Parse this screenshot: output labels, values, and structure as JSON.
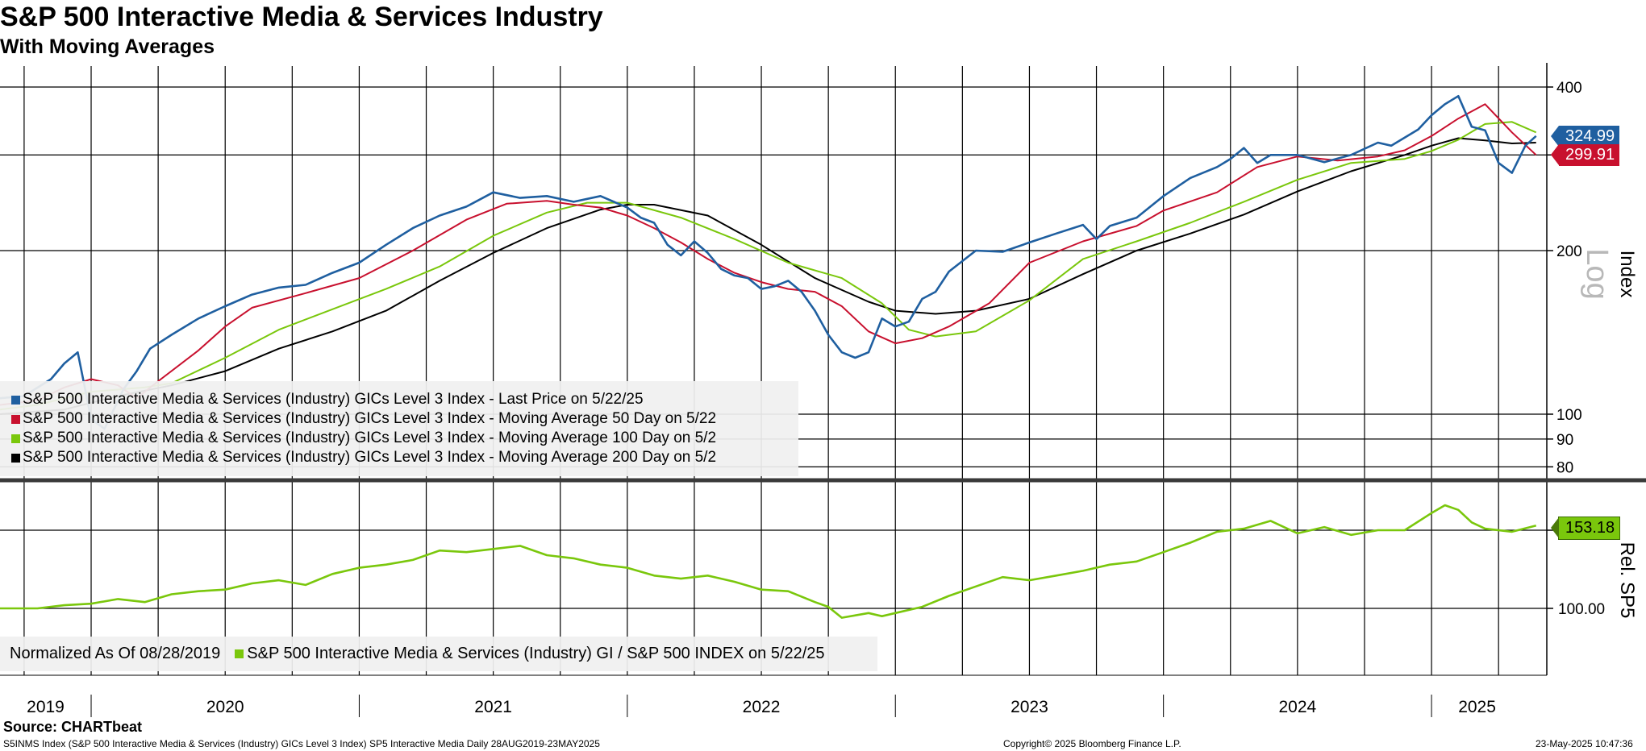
{
  "title": "S&P 500 Interactive Media & Services Industry",
  "subtitle": "With Moving Averages",
  "source": "Source: CHARTbeat",
  "footer": {
    "left": "S5INMS Index (S&P 500 Interactive Media & Services (Industry) GICs Level 3 Index) SP5 Interactive Media  Daily 28AUG2019-23MAY2025",
    "center": "Copyright© 2025 Bloomberg Finance L.P.",
    "right": "23-May-2025 10:47:36"
  },
  "colors": {
    "price": "#1f5fa0",
    "ma50": "#c8102e",
    "ma100": "#7ac70c",
    "ma200": "#000000",
    "rel": "#7ac70c"
  },
  "chart_data": [
    {
      "type": "line",
      "scale": "log",
      "ylabel": "Index",
      "scale_label": "Log",
      "ylim": [
        75,
        420
      ],
      "yticks": [
        80,
        90,
        100,
        200,
        300,
        400
      ],
      "ytick_labels": [
        "80",
        "90",
        "100",
        "200",
        "",
        "400"
      ],
      "xlim": [
        2019.66,
        2025.43
      ],
      "x_labels": [
        "2019",
        "2020",
        "2021",
        "2022",
        "2023",
        "2024",
        "2025"
      ],
      "x_label_positions": [
        2019.83,
        2020.5,
        2021.5,
        2022.5,
        2023.5,
        2024.5,
        2025.17
      ],
      "legend": [
        "S&P 500 Interactive Media & Services (Industry) GICs Level 3 Index - Last Price on 5/22/25",
        "S&P 500 Interactive Media & Services (Industry) GICs Level 3 Index - Moving Average 50 Day on 5/22",
        "S&P 500 Interactive Media & Services (Industry) GICs Level 3 Index - Moving Average 100 Day on 5/2",
        "S&P 500 Interactive Media & Services (Industry) GICs Level 3 Index - Moving Average 200 Day on 5/2"
      ],
      "last_labels": {
        "price": "324.99",
        "ma50": "299.91"
      },
      "series": [
        {
          "name": "Last Price",
          "color": "#1f5fa0",
          "x": [
            2019.66,
            2019.75,
            2019.85,
            2019.9,
            2019.95,
            2020.0,
            2020.05,
            2020.12,
            2020.17,
            2020.22,
            2020.3,
            2020.4,
            2020.5,
            2020.6,
            2020.7,
            2020.8,
            2020.9,
            2021.0,
            2021.1,
            2021.2,
            2021.3,
            2021.4,
            2021.5,
            2021.6,
            2021.7,
            2021.8,
            2021.9,
            2022.0,
            2022.05,
            2022.1,
            2022.15,
            2022.2,
            2022.25,
            2022.3,
            2022.35,
            2022.4,
            2022.45,
            2022.5,
            2022.55,
            2022.6,
            2022.65,
            2022.7,
            2022.75,
            2022.8,
            2022.85,
            2022.9,
            2022.95,
            2023.0,
            2023.05,
            2023.1,
            2023.15,
            2023.2,
            2023.3,
            2023.4,
            2023.5,
            2023.6,
            2023.7,
            2023.75,
            2023.8,
            2023.9,
            2024.0,
            2024.1,
            2024.2,
            2024.25,
            2024.3,
            2024.35,
            2024.4,
            2024.5,
            2024.6,
            2024.7,
            2024.8,
            2024.85,
            2024.95,
            2025.0,
            2025.05,
            2025.1,
            2025.15,
            2025.2,
            2025.25,
            2025.3,
            2025.35,
            2025.39
          ],
          "y": [
            107,
            108,
            116,
            124,
            130,
            98,
            94,
            111,
            120,
            132,
            140,
            150,
            158,
            166,
            171,
            173,
            182,
            190,
            205,
            220,
            232,
            241,
            256,
            250,
            252,
            246,
            252,
            240,
            230,
            225,
            205,
            196,
            208,
            198,
            185,
            180,
            178,
            170,
            172,
            176,
            168,
            155,
            140,
            130,
            127,
            130,
            150,
            145,
            148,
            163,
            168,
            183,
            200,
            199,
            207,
            215,
            223,
            210,
            222,
            230,
            252,
            272,
            285,
            295,
            309,
            290,
            300,
            300,
            291,
            300,
            316,
            312,
            334,
            355,
            372,
            385,
            338,
            333,
            290,
            278,
            312,
            325
          ]
        },
        {
          "name": "Moving Average 50 Day",
          "color": "#c8102e",
          "x": [
            2019.66,
            2019.8,
            2019.9,
            2020.0,
            2020.1,
            2020.17,
            2020.25,
            2020.4,
            2020.5,
            2020.6,
            2020.8,
            2021.0,
            2021.2,
            2021.4,
            2021.55,
            2021.7,
            2021.8,
            2021.9,
            2022.0,
            2022.1,
            2022.2,
            2022.3,
            2022.4,
            2022.5,
            2022.6,
            2022.7,
            2022.8,
            2022.9,
            2023.0,
            2023.1,
            2023.2,
            2023.35,
            2023.5,
            2023.7,
            2023.9,
            2024.0,
            2024.2,
            2024.35,
            2024.5,
            2024.65,
            2024.8,
            2024.9,
            2025.0,
            2025.1,
            2025.2,
            2025.3,
            2025.39
          ],
          "y": [
            104,
            106,
            112,
            116,
            113,
            107,
            115,
            131,
            145,
            157,
            167,
            178,
            200,
            228,
            244,
            247,
            243,
            240,
            232,
            220,
            207,
            193,
            182,
            175,
            170,
            168,
            158,
            142,
            135,
            138,
            145,
            160,
            190,
            208,
            222,
            237,
            256,
            285,
            298,
            293,
            298,
            306,
            325,
            350,
            372,
            330,
            300
          ]
        },
        {
          "name": "Moving Average 100 Day",
          "color": "#7ac70c",
          "x": [
            2019.66,
            2019.8,
            2020.0,
            2020.2,
            2020.3,
            2020.5,
            2020.7,
            2020.9,
            2021.1,
            2021.3,
            2021.5,
            2021.7,
            2021.85,
            2022.0,
            2022.2,
            2022.4,
            2022.6,
            2022.8,
            2022.95,
            2023.05,
            2023.15,
            2023.3,
            2023.5,
            2023.7,
            2023.9,
            2024.1,
            2024.3,
            2024.5,
            2024.7,
            2024.9,
            2025.0,
            2025.1,
            2025.2,
            2025.3,
            2025.39
          ],
          "y": [
            102,
            104,
            110,
            112,
            114,
            127,
            143,
            156,
            170,
            187,
            213,
            235,
            245,
            245,
            230,
            210,
            190,
            178,
            160,
            143,
            139,
            142,
            162,
            193,
            208,
            225,
            246,
            270,
            290,
            295,
            305,
            320,
            342,
            345,
            330
          ]
        },
        {
          "name": "Moving Average 200 Day",
          "color": "#000000",
          "x": [
            2019.66,
            2019.9,
            2020.1,
            2020.3,
            2020.5,
            2020.7,
            2020.9,
            2021.1,
            2021.3,
            2021.5,
            2021.7,
            2021.9,
            2022.0,
            2022.1,
            2022.3,
            2022.5,
            2022.7,
            2022.9,
            2023.0,
            2023.15,
            2023.3,
            2023.5,
            2023.7,
            2023.9,
            2024.1,
            2024.3,
            2024.5,
            2024.7,
            2024.9,
            2025.0,
            2025.1,
            2025.2,
            2025.3,
            2025.39
          ],
          "y": [
            100,
            102,
            108,
            113,
            120,
            132,
            142,
            155,
            176,
            198,
            220,
            238,
            243,
            243,
            232,
            205,
            178,
            161,
            155,
            153,
            155,
            163,
            181,
            200,
            215,
            233,
            257,
            280,
            300,
            312,
            322,
            319,
            315,
            316
          ]
        }
      ]
    },
    {
      "type": "line",
      "ylabel": "Rel. SP5",
      "ytick_labels": [
        "100.00"
      ],
      "ylim": [
        70,
        175
      ],
      "yticks": [
        100
      ],
      "legend": [
        "Normalized As Of 08/28/2019",
        "S&P 500 Interactive Media & Services (Industry) GI / S&P 500 INDEX on 5/22/25"
      ],
      "last_label": "153.18",
      "series": [
        {
          "name": "S&P 500 Interactive Media & Services (Industry) GI / S&P 500 INDEX",
          "color": "#7ac70c",
          "x": [
            2019.66,
            2019.8,
            2019.9,
            2020.0,
            2020.1,
            2020.2,
            2020.3,
            2020.4,
            2020.5,
            2020.6,
            2020.7,
            2020.8,
            2020.9,
            2021.0,
            2021.1,
            2021.2,
            2021.3,
            2021.4,
            2021.5,
            2021.6,
            2021.7,
            2021.8,
            2021.9,
            2022.0,
            2022.1,
            2022.2,
            2022.3,
            2022.4,
            2022.5,
            2022.6,
            2022.7,
            2022.75,
            2022.8,
            2022.9,
            2022.95,
            2023.0,
            2023.1,
            2023.2,
            2023.3,
            2023.4,
            2023.5,
            2023.6,
            2023.7,
            2023.8,
            2023.9,
            2024.0,
            2024.1,
            2024.2,
            2024.3,
            2024.4,
            2024.5,
            2024.6,
            2024.7,
            2024.8,
            2024.9,
            2025.0,
            2025.05,
            2025.1,
            2025.15,
            2025.2,
            2025.3,
            2025.39
          ],
          "y": [
            100,
            100,
            102,
            103,
            106,
            104,
            109,
            111,
            112,
            116,
            118,
            115,
            122,
            126,
            128,
            131,
            137,
            136,
            138,
            140,
            134,
            132,
            128,
            126,
            121,
            119,
            121,
            117,
            112,
            111,
            104,
            101,
            94,
            97,
            95,
            97,
            101,
            108,
            114,
            120,
            118,
            121,
            124,
            128,
            130,
            136,
            142,
            149,
            151,
            156,
            148,
            152,
            147,
            150,
            150,
            161,
            166,
            163,
            155,
            151,
            149,
            153
          ]
        }
      ]
    }
  ]
}
